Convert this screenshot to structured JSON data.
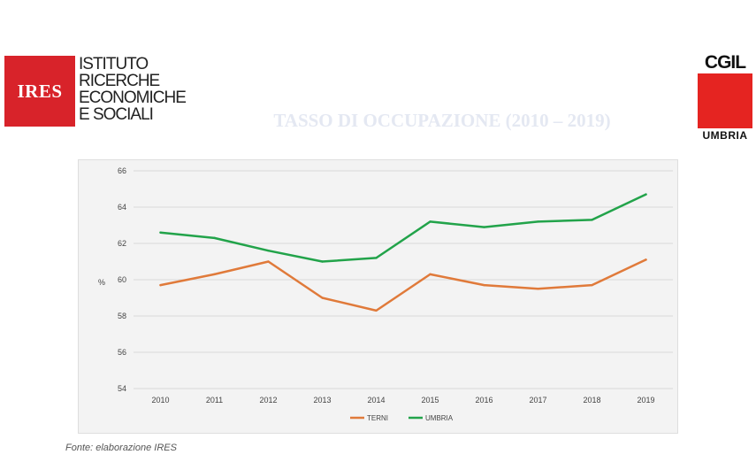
{
  "header": {
    "ires_logo": {
      "mark": "IRES",
      "lines": [
        "ISTITUTO",
        "RICERCHE",
        "ECONOMICHE",
        "E SOCIALI"
      ]
    },
    "title": "TASSO DI OCCUPAZIONE (2010 – 2019)",
    "cgil_logo": {
      "top": "CGIL",
      "bottom": "UMBRIA"
    }
  },
  "chart_data": {
    "type": "line",
    "x": [
      "2010",
      "2011",
      "2012",
      "2013",
      "2014",
      "2015",
      "2016",
      "2017",
      "2018",
      "2019"
    ],
    "series": [
      {
        "name": "TERNI",
        "color": "#e07a3a",
        "values": [
          59.7,
          60.3,
          61.0,
          59.0,
          58.3,
          60.3,
          59.7,
          59.5,
          59.7,
          61.1
        ]
      },
      {
        "name": "UMBRIA",
        "color": "#22a34a",
        "values": [
          62.6,
          62.3,
          61.6,
          61.0,
          61.2,
          63.2,
          62.9,
          63.2,
          63.3,
          64.7
        ]
      }
    ],
    "ylabel": "%",
    "ylim": [
      54,
      66
    ],
    "yticks": [
      54,
      56,
      58,
      60,
      62,
      64,
      66
    ],
    "grid": true,
    "legend": "bottom-center"
  },
  "footer": {
    "source": "Fonte: elaborazione IRES"
  }
}
